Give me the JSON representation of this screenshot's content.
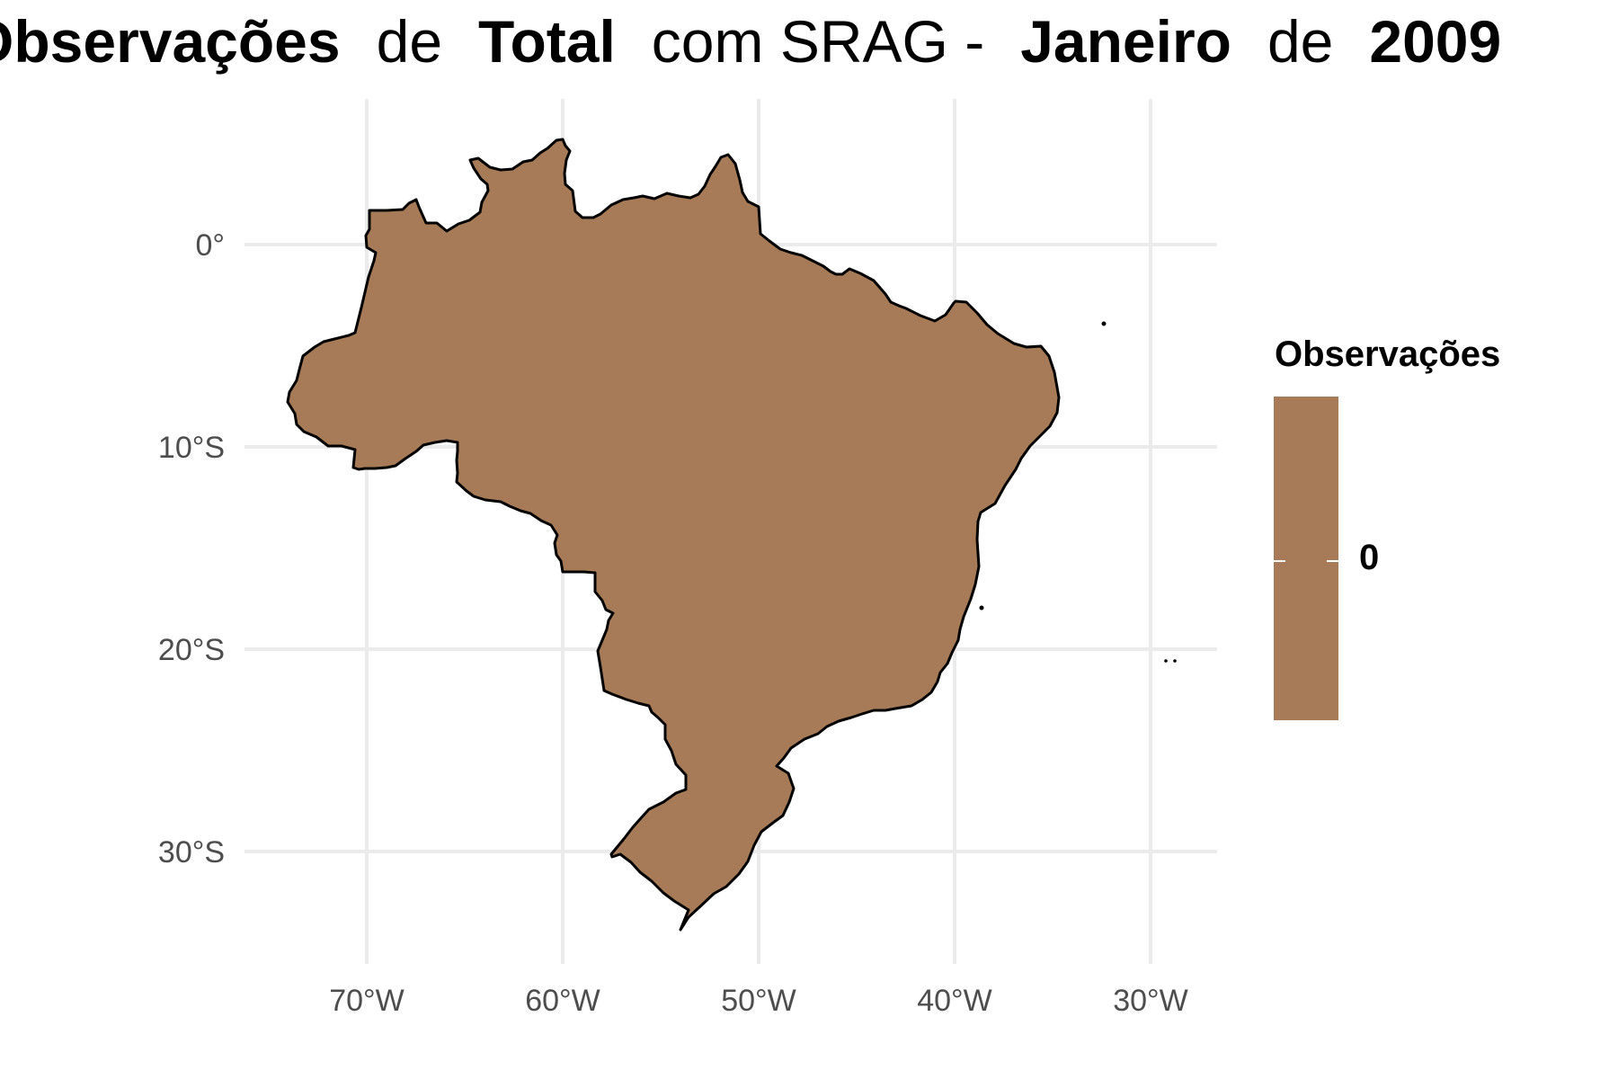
{
  "title": {
    "part1": "Observações",
    "part2": "de",
    "part3": "Total",
    "part4": "com SRAG -",
    "part5": "Janeiro",
    "part6": "de",
    "part7": "2009"
  },
  "legend": {
    "title": "Observações",
    "value": "0",
    "fill_color": "#A87B58"
  },
  "map": {
    "region_fill": "#A87B58",
    "border_color": "#000000",
    "grid_color": "#EBEBEB"
  },
  "chart_data": {
    "type": "choropleth",
    "region": "Brasil",
    "value": 0,
    "x_ticks": [
      "70°W",
      "60°W",
      "50°W",
      "40°W",
      "30°W"
    ],
    "y_ticks": [
      "0°",
      "10°S",
      "20°S",
      "30°S"
    ],
    "grid": true
  }
}
